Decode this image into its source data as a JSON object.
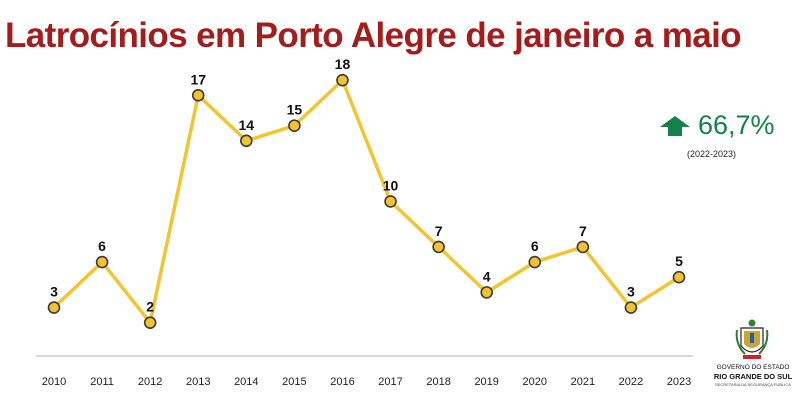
{
  "colors": {
    "title": "#a51c1c",
    "line": "#f2c530",
    "marker_fill": "#f2c230",
    "marker_stroke": "#3a3a3a",
    "baseline": "#b0b0b0",
    "label": "#111111",
    "stat": "#13824a"
  },
  "icons": {
    "trend": "arrow-up-icon",
    "logo": "crest-icon"
  },
  "stat": {
    "value": "66,7%",
    "period": "(2022-2023)"
  },
  "logo": {
    "line1": "GOVERNO DO ESTADO",
    "line2": "RIO GRANDE DO SUL",
    "line3": "SECRETARIA DA SEGURANÇA PÚBLICA"
  },
  "chart_data": {
    "type": "line",
    "title": "Latrocínios em Porto Alegre de janeiro a maio",
    "xlabel": "",
    "ylabel": "",
    "categories": [
      "2010",
      "2011",
      "2012",
      "2013",
      "2014",
      "2015",
      "2016",
      "2017",
      "2018",
      "2019",
      "2020",
      "2021",
      "2022",
      "2023"
    ],
    "values": [
      3,
      6,
      2,
      17,
      14,
      15,
      18,
      10,
      7,
      4,
      6,
      7,
      3,
      5
    ],
    "ylim": [
      0,
      19
    ],
    "grid": false,
    "legend": "none",
    "data_labels": true
  }
}
